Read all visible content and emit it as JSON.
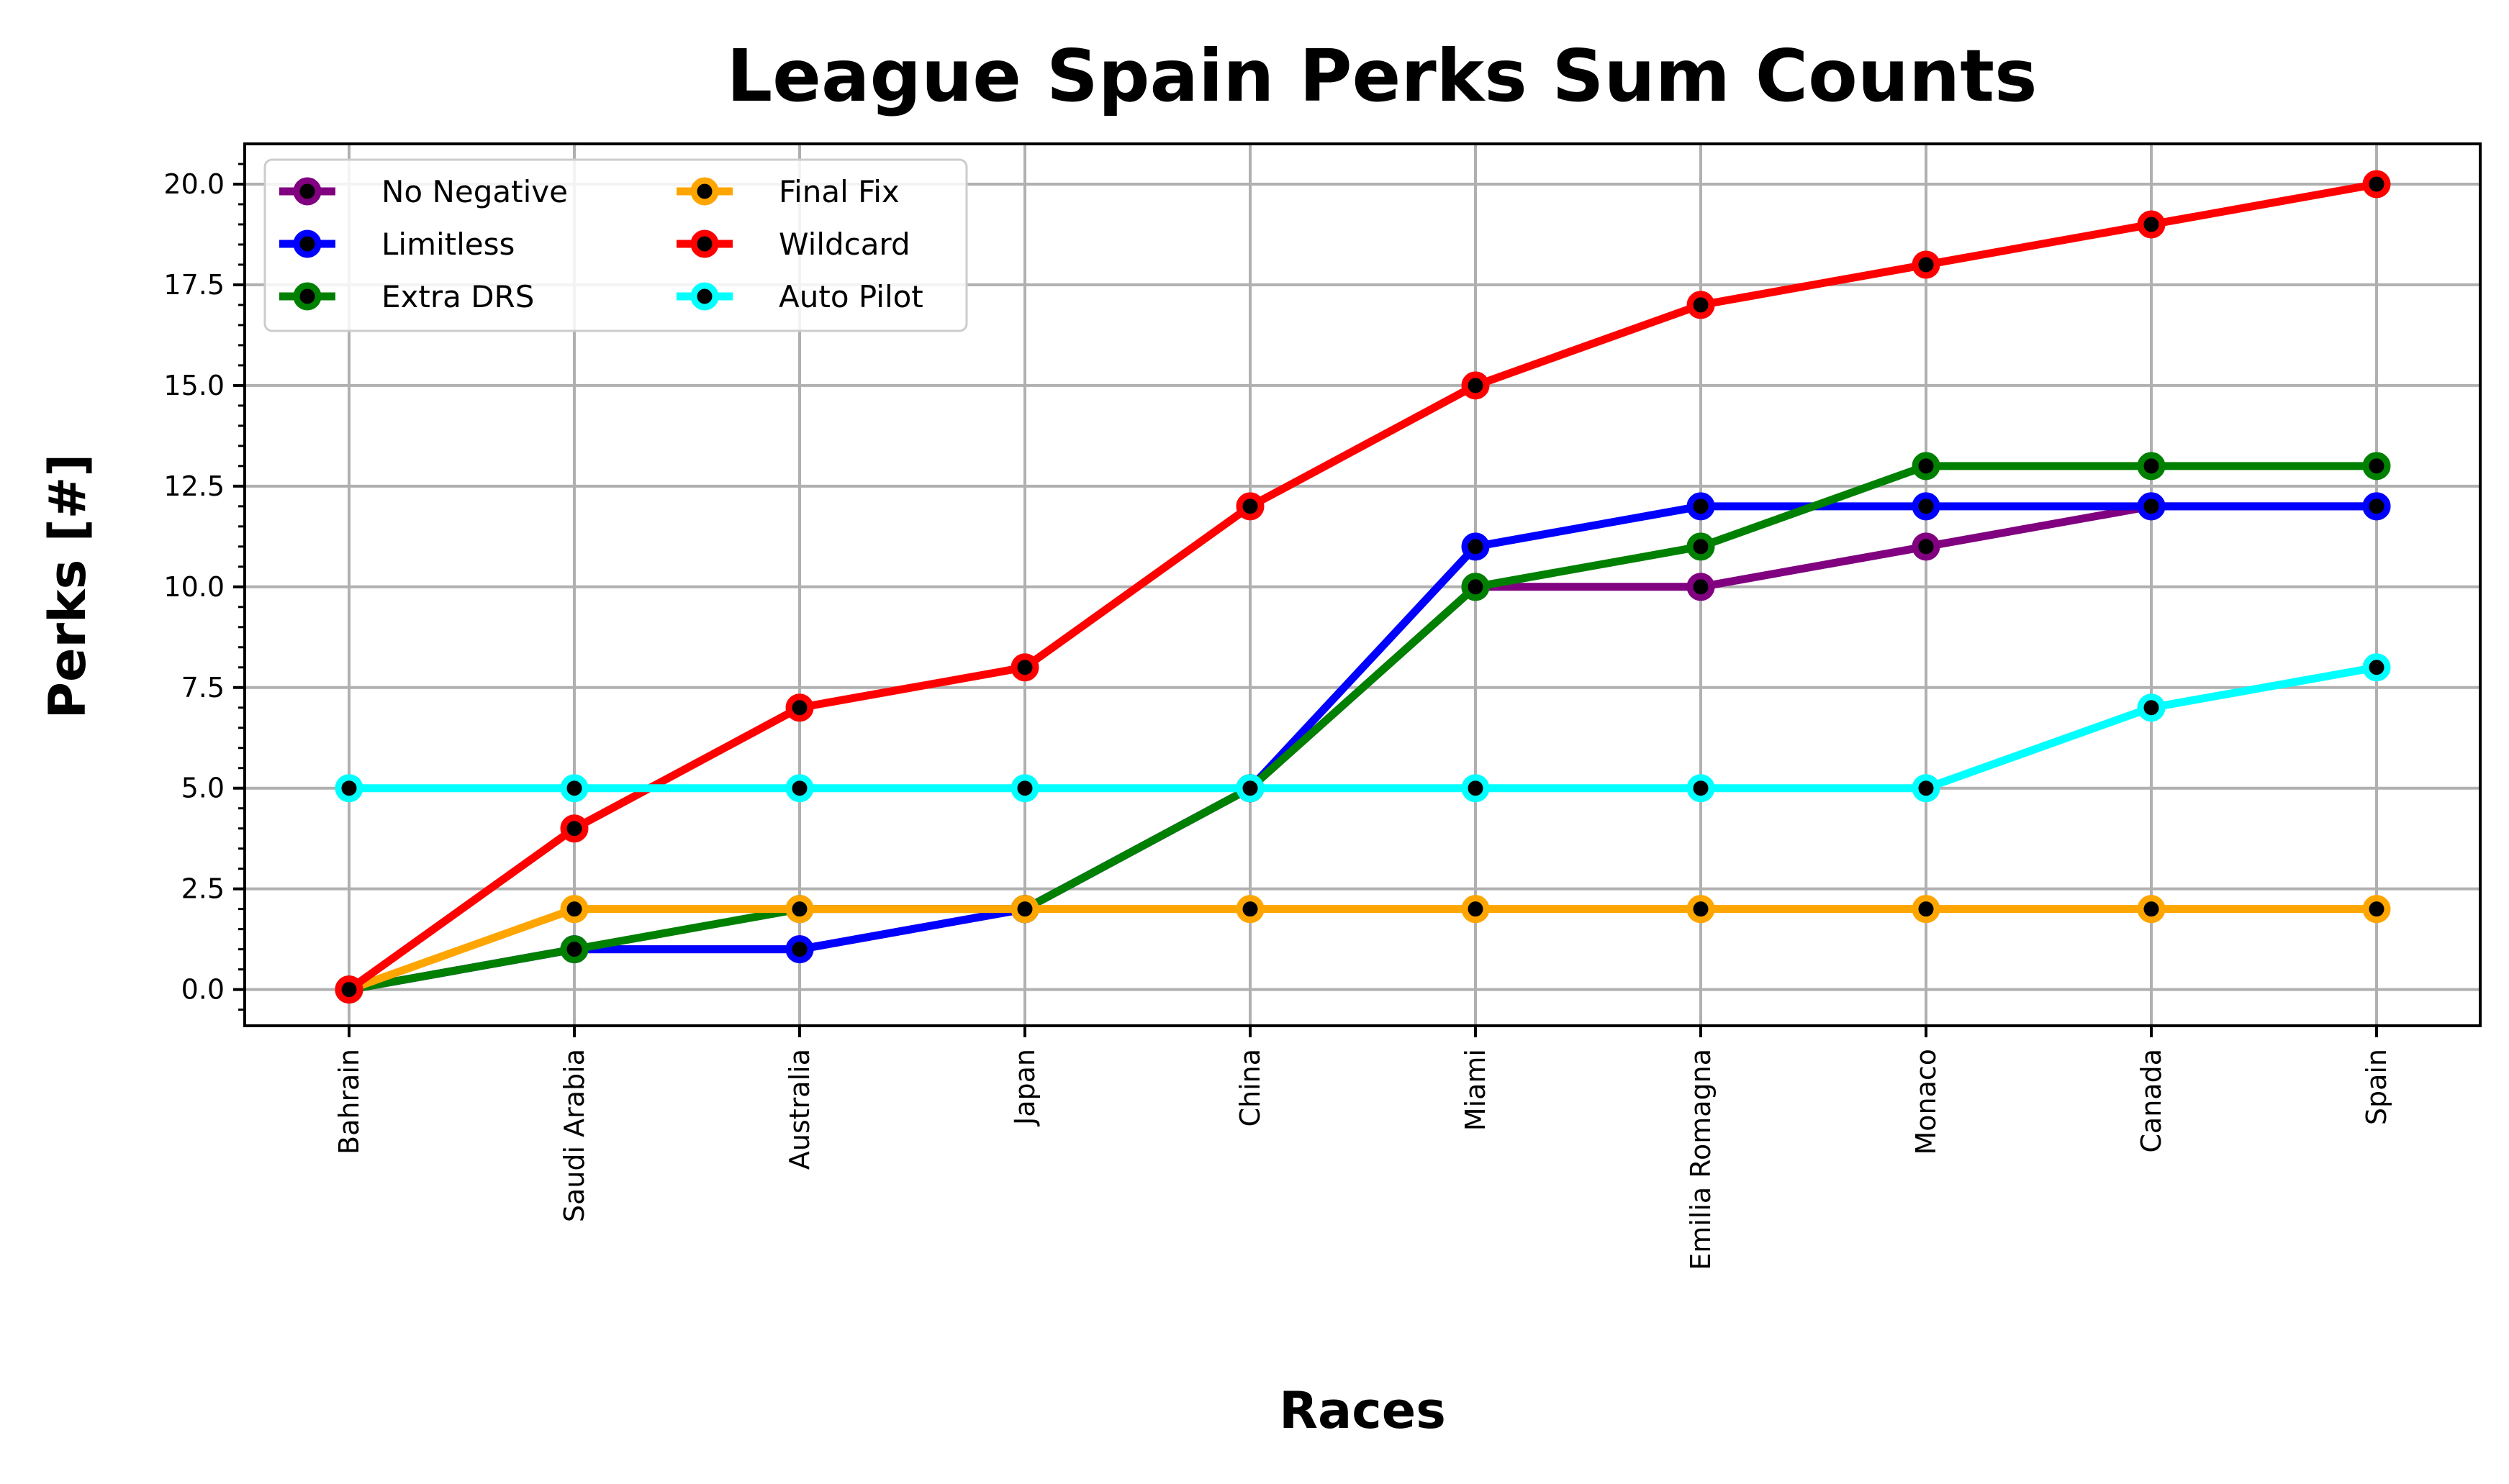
{
  "chart_data": {
    "type": "line",
    "title": "League Spain Perks Sum Counts",
    "xlabel": "Races",
    "ylabel": "Perks [#]",
    "categories": [
      "Bahrain",
      "Saudi Arabia",
      "Australia",
      "Japan",
      "China",
      "Miami",
      "Emilia Romagna",
      "Monaco",
      "Canada",
      "Spain"
    ],
    "ylim": [
      -0.9,
      21.0
    ],
    "yticks": [
      "0.0",
      "2.5",
      "5.0",
      "7.5",
      "10.0",
      "12.5",
      "15.0",
      "17.5",
      "20.0"
    ],
    "grid": true,
    "legend_position": "top-left",
    "series": [
      {
        "name": "No Negative",
        "color": "#800080",
        "values": [
          0,
          1,
          1,
          2,
          5,
          10,
          10,
          11,
          12,
          12
        ]
      },
      {
        "name": "Limitless",
        "color": "#0000ff",
        "values": [
          0,
          1,
          1,
          2,
          5,
          11,
          12,
          12,
          12,
          12
        ]
      },
      {
        "name": "Extra DRS",
        "color": "#008000",
        "values": [
          0,
          1,
          2,
          2,
          5,
          10,
          11,
          13,
          13,
          13
        ]
      },
      {
        "name": "Final Fix",
        "color": "#ffa500",
        "values": [
          0,
          2,
          2,
          2,
          2,
          2,
          2,
          2,
          2,
          2
        ]
      },
      {
        "name": "Wildcard",
        "color": "#ff0000",
        "values": [
          0,
          4,
          7,
          8,
          12,
          15,
          17,
          18,
          19,
          20
        ]
      },
      {
        "name": "Auto Pilot",
        "color": "#00ffff",
        "values": [
          5,
          5,
          5,
          5,
          5,
          5,
          5,
          5,
          7,
          8
        ]
      }
    ]
  }
}
